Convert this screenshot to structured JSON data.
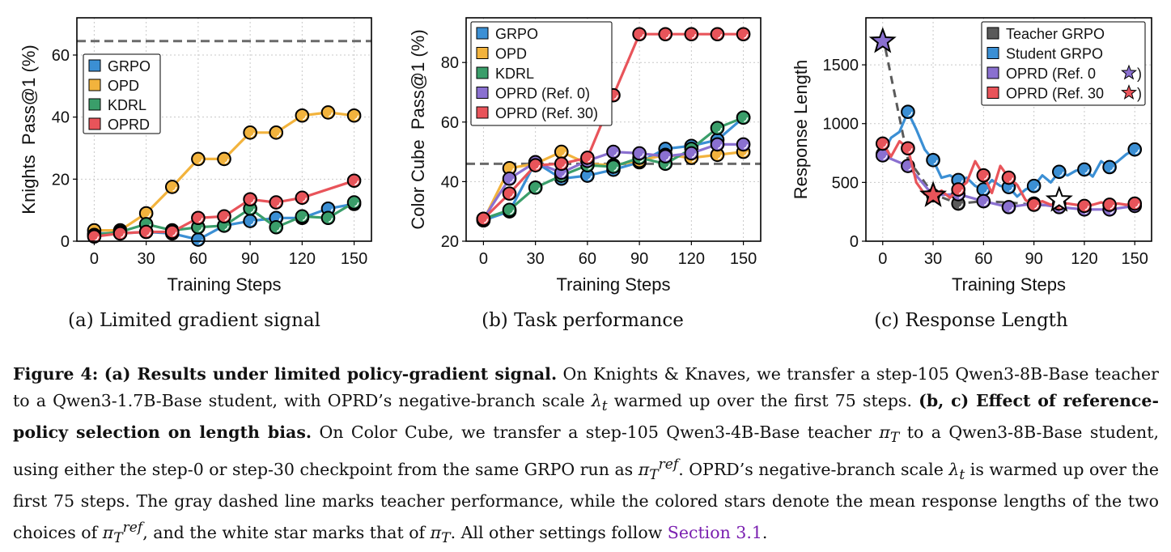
{
  "figure": {
    "subcaptions": [
      "(a) Limited gradient signal",
      "(b) Task performance",
      "(c) Response Length"
    ],
    "caption": {
      "label": "Figure 4:",
      "bold_a": "(a) Results under limited policy-gradient signal.",
      "text_a1": "On Knights & Knaves, we transfer a step-105 Qwen3-8B-Base teacher to a Qwen3-1.7B-Base student, with OPRD’s negative-branch scale",
      "text_a2": "warmed up over the first 75 steps.",
      "bold_bc": "(b, c) Effect of reference-policy selection on length bias.",
      "text_b1": "On Color Cube, we transfer a step-105 Qwen3-4B-Base teacher",
      "text_b2": "to a Qwen3-8B-Base student, using either the step-0 or step-30 checkpoint from the same GRPO run as",
      "text_b3": ". OPRD’s negative-branch scale",
      "text_b4": "is warmed up over the first 75 steps. The gray dashed line marks teacher performance, while the colored stars denote the mean response lengths of the two choices of",
      "text_b5": ", and the white star marks that of",
      "text_b6": ". All other settings follow",
      "link": "Section 3.1",
      "end": "."
    }
  },
  "colors": {
    "GRPO": "#3b8fd4",
    "OPD": "#f2b33d",
    "KDRL": "#3a9e6a",
    "OPRD": "#e8545a",
    "OPRD0": "#8a70d0",
    "Teacher": "#5a5a5a"
  },
  "chart_data": [
    {
      "type": "line",
      "xlabel": "Training Steps",
      "ylabel": "Knights  Pass@1 (%)",
      "xlim": [
        -10,
        160
      ],
      "ylim": [
        0,
        72
      ],
      "xticks": [
        0,
        30,
        60,
        90,
        120,
        150
      ],
      "yticks": [
        0,
        20,
        40,
        60
      ],
      "grid": true,
      "legend_position": "upper-left",
      "reference_line": {
        "y": 64.5,
        "style": "dashed"
      },
      "x": [
        0,
        15,
        30,
        45,
        60,
        75,
        90,
        105,
        120,
        135,
        150
      ],
      "series": [
        {
          "name": "GRPO",
          "color": "#3b8fd4",
          "values": [
            2.5,
            2.5,
            3,
            2.5,
            0.5,
            5,
            6.5,
            7.5,
            7.5,
            10.5,
            12
          ]
        },
        {
          "name": "OPD",
          "color": "#f2b33d",
          "values": [
            3.5,
            3.5,
            9,
            17.5,
            26.5,
            26.5,
            35,
            35,
            40.5,
            41.5,
            40.5
          ]
        },
        {
          "name": "KDRL",
          "color": "#3a9e6a",
          "values": [
            2,
            3,
            5.5,
            3.5,
            4.5,
            5,
            10.5,
            4.5,
            8,
            7.5,
            12.5
          ]
        },
        {
          "name": "OPRD",
          "color": "#e8545a",
          "values": [
            1.5,
            2.5,
            3,
            3,
            7.5,
            8,
            13.5,
            12.5,
            14,
            null,
            19.5
          ]
        }
      ]
    },
    {
      "type": "line",
      "xlabel": "Training Steps",
      "ylabel": "Color Cube  Pass@1 (%)",
      "xlim": [
        -10,
        160
      ],
      "ylim": [
        20,
        95
      ],
      "xticks": [
        0,
        30,
        60,
        90,
        120,
        150
      ],
      "yticks": [
        20,
        40,
        60,
        80
      ],
      "grid": true,
      "legend_position": "upper-left",
      "reference_line": {
        "y": 46,
        "style": "dashed"
      },
      "x": [
        0,
        15,
        30,
        45,
        60,
        75,
        90,
        105,
        120,
        135,
        150
      ],
      "series": [
        {
          "name": "GRPO",
          "color": "#3b8fd4",
          "values": [
            27,
            30,
            46.5,
            41,
            42,
            44,
            46.5,
            51,
            52,
            54,
            61.5
          ]
        },
        {
          "name": "OPD",
          "color": "#f2b33d",
          "values": [
            27,
            44.5,
            46,
            50,
            46,
            45.5,
            47,
            49,
            48,
            49,
            50
          ]
        },
        {
          "name": "KDRL",
          "color": "#3a9e6a",
          "values": [
            27.5,
            30.5,
            38,
            42,
            45.5,
            45,
            48,
            46,
            51,
            58,
            61.5
          ]
        },
        {
          "name": "OPRD (Ref. 0)",
          "color": "#8a70d0",
          "values": [
            27.5,
            41,
            46.5,
            43,
            47,
            50,
            49.5,
            48.5,
            49.5,
            52.5,
            52.5
          ]
        },
        {
          "name": "OPRD (Ref. 30)",
          "color": "#e8545a",
          "values": [
            27.5,
            36,
            45.5,
            46,
            48,
            69,
            89.5,
            89.5,
            89.5,
            89.5,
            89.5
          ]
        }
      ]
    },
    {
      "type": "line",
      "xlabel": "Training Steps",
      "ylabel": "Response Length",
      "xlim": [
        -10,
        160
      ],
      "ylim": [
        0,
        1900
      ],
      "xticks": [
        0,
        30,
        60,
        90,
        120,
        150
      ],
      "yticks": [
        0,
        500,
        1000,
        1500
      ],
      "grid": true,
      "legend_position": "upper-right",
      "series": [
        {
          "name": "Teacher GRPO",
          "color": "#5a5a5a",
          "dashed": true,
          "x": [
            0,
            15,
            30,
            45,
            60,
            75,
            90,
            105
          ],
          "values": [
            1750,
            700,
            400,
            320,
            340,
            330,
            310,
            300
          ],
          "markers": [
            45
          ]
        },
        {
          "name": "Student GRPO",
          "color": "#3b8fd4",
          "x": [
            0,
            5,
            10,
            15,
            20,
            25,
            30,
            35,
            40,
            45,
            50,
            55,
            60,
            65,
            70,
            75,
            80,
            85,
            90,
            95,
            100,
            105,
            110,
            115,
            120,
            125,
            130,
            135,
            140,
            145,
            150
          ],
          "values": [
            740,
            880,
            930,
            1100,
            950,
            780,
            690,
            540,
            560,
            520,
            540,
            470,
            440,
            520,
            470,
            460,
            380,
            440,
            470,
            560,
            500,
            590,
            560,
            600,
            610,
            550,
            680,
            630,
            680,
            740,
            780
          ],
          "markers": [
            0,
            15,
            30,
            45,
            60,
            75,
            90,
            105,
            120,
            135,
            150
          ]
        },
        {
          "name": "OPRD (Ref. 0",
          "color": "#8a70d0",
          "x": [
            0,
            15,
            30,
            45,
            60,
            75,
            90,
            105,
            120,
            135,
            150
          ],
          "values": [
            730,
            640,
            390,
            400,
            340,
            290,
            320,
            290,
            270,
            270,
            300
          ],
          "markers": [
            0,
            15,
            30,
            45,
            60,
            75,
            90,
            105,
            120,
            135,
            150
          ]
        },
        {
          "name": "OPRD (Ref. 30",
          "color": "#e8545a",
          "x": [
            0,
            5,
            10,
            15,
            20,
            25,
            30,
            35,
            40,
            45,
            50,
            55,
            60,
            65,
            70,
            75,
            80,
            85,
            90,
            95,
            100,
            105,
            110,
            115,
            120,
            125,
            130,
            135,
            140,
            145,
            150
          ],
          "values": [
            830,
            720,
            850,
            790,
            500,
            400,
            380,
            430,
            370,
            440,
            500,
            680,
            560,
            410,
            640,
            540,
            480,
            350,
            310,
            340,
            310,
            320,
            320,
            310,
            300,
            310,
            330,
            310,
            320,
            310,
            320
          ],
          "markers": [
            0,
            15,
            45,
            60,
            75,
            90,
            105,
            120,
            135,
            150
          ]
        }
      ],
      "stars": [
        {
          "x": 0,
          "y": 1700,
          "color": "#8a70d0"
        },
        {
          "x": 30,
          "y": 390,
          "color": "#e8545a"
        },
        {
          "x": 105,
          "y": 350,
          "color": "#ffffff"
        }
      ]
    }
  ]
}
